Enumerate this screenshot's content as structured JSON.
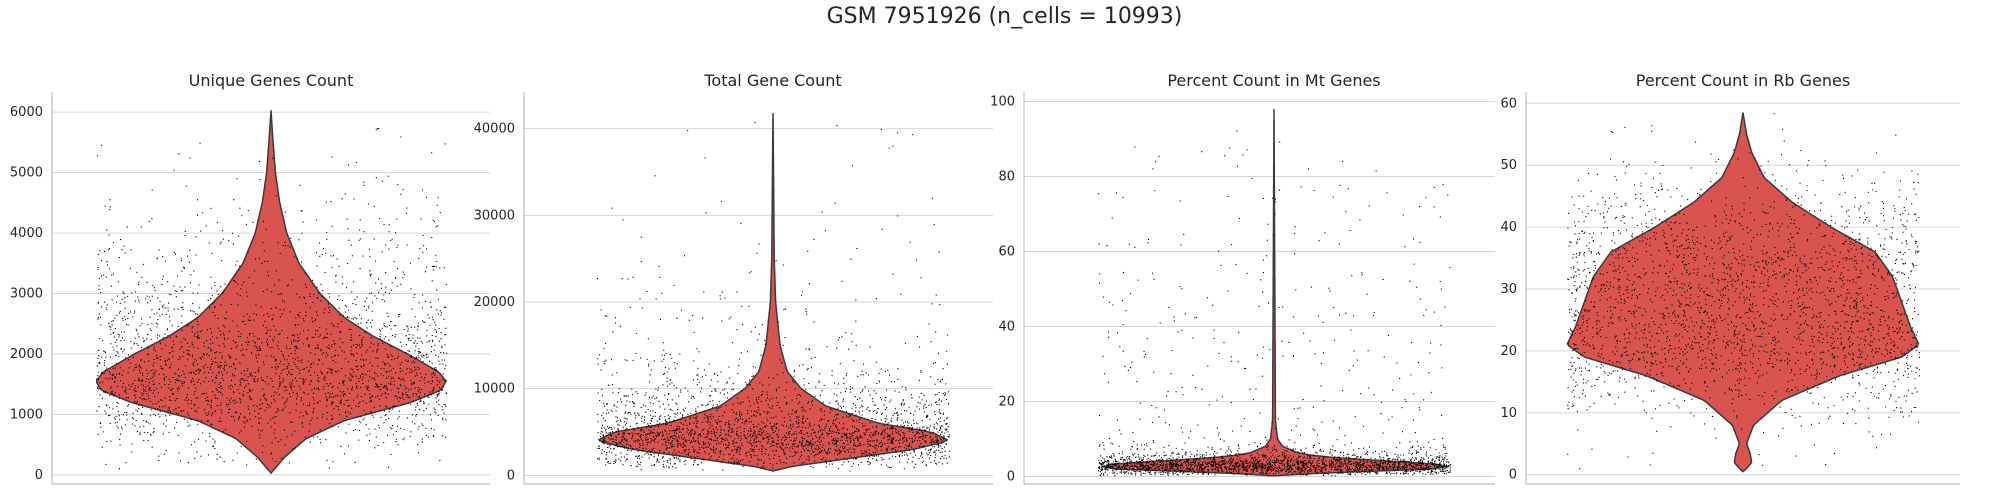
{
  "figure": {
    "title": "GSM 7951926 (n_cells = 10993)"
  },
  "style": {
    "violin_fill": "#d9534f",
    "violin_edge": "#3a3a3a",
    "point_color": "#000000",
    "grid_color": "#d6d6d6",
    "axis_color": "#bdbdbd",
    "text_color": "#262626"
  },
  "chart_data": [
    {
      "type": "violin",
      "title": "Unique Genes Count",
      "xlabel": "",
      "ylabel": "",
      "ylim": [
        -150,
        6300
      ],
      "yticks": [
        0,
        1000,
        2000,
        3000,
        4000,
        5000,
        6000
      ],
      "grid": "horizontal",
      "n_points": 10993,
      "violin": {
        "min": 30,
        "max": 6030,
        "median": 1600,
        "density": [
          [
            30,
            0.0
          ],
          [
            300,
            0.08
          ],
          [
            600,
            0.2
          ],
          [
            900,
            0.42
          ],
          [
            1200,
            0.8
          ],
          [
            1400,
            0.97
          ],
          [
            1550,
            1.0
          ],
          [
            1700,
            0.96
          ],
          [
            2000,
            0.78
          ],
          [
            2300,
            0.58
          ],
          [
            2600,
            0.42
          ],
          [
            3000,
            0.28
          ],
          [
            3500,
            0.16
          ],
          [
            4000,
            0.09
          ],
          [
            4500,
            0.05
          ],
          [
            5000,
            0.025
          ],
          [
            5500,
            0.012
          ],
          [
            6030,
            0.0
          ]
        ]
      }
    },
    {
      "type": "violin",
      "title": "Total Gene Count",
      "xlabel": "",
      "ylabel": "",
      "ylim": [
        -1000,
        44000
      ],
      "yticks": [
        0,
        10000,
        20000,
        30000,
        40000
      ],
      "grid": "horizontal",
      "n_points": 10993,
      "violin": {
        "min": 500,
        "max": 41800,
        "median": 4200,
        "density": [
          [
            500,
            0.0
          ],
          [
            1000,
            0.1
          ],
          [
            2000,
            0.45
          ],
          [
            3000,
            0.8
          ],
          [
            4000,
            1.0
          ],
          [
            5000,
            0.9
          ],
          [
            6000,
            0.6
          ],
          [
            8000,
            0.3
          ],
          [
            10000,
            0.16
          ],
          [
            12000,
            0.08
          ],
          [
            15000,
            0.04
          ],
          [
            20000,
            0.015
          ],
          [
            25000,
            0.007
          ],
          [
            30000,
            0.005
          ],
          [
            41800,
            0.0
          ]
        ]
      }
    },
    {
      "type": "violin",
      "title": "Percent Count in Mt Genes",
      "xlabel": "",
      "ylabel": "",
      "ylim": [
        -2,
        102
      ],
      "yticks": [
        0,
        20,
        40,
        60,
        80,
        100
      ],
      "grid": "horizontal",
      "n_points": 10993,
      "violin": {
        "min": 0.2,
        "max": 98,
        "median": 2.8,
        "density": [
          [
            0.2,
            0.0
          ],
          [
            1,
            0.3
          ],
          [
            2,
            0.9
          ],
          [
            3,
            1.0
          ],
          [
            4,
            0.7
          ],
          [
            5,
            0.35
          ],
          [
            6,
            0.15
          ],
          [
            8,
            0.05
          ],
          [
            10,
            0.02
          ],
          [
            15,
            0.008
          ],
          [
            98,
            0.0
          ]
        ]
      }
    },
    {
      "type": "violin",
      "title": "Percent Count in Rb Genes",
      "xlabel": "",
      "ylabel": "",
      "ylim": [
        -1.5,
        61.5
      ],
      "yticks": [
        0,
        10,
        20,
        30,
        40,
        50,
        60
      ],
      "grid": "horizontal",
      "n_points": 10993,
      "violin": {
        "min": 0.5,
        "max": 58.5,
        "median": 22,
        "density": [
          [
            0.5,
            0.0
          ],
          [
            1,
            0.02
          ],
          [
            2,
            0.05
          ],
          [
            3.5,
            0.04
          ],
          [
            5,
            0.02
          ],
          [
            8,
            0.06
          ],
          [
            12,
            0.22
          ],
          [
            16,
            0.55
          ],
          [
            19,
            0.9
          ],
          [
            21,
            1.0
          ],
          [
            24,
            0.95
          ],
          [
            28,
            0.9
          ],
          [
            32,
            0.85
          ],
          [
            36,
            0.75
          ],
          [
            40,
            0.5
          ],
          [
            44,
            0.28
          ],
          [
            48,
            0.12
          ],
          [
            52,
            0.05
          ],
          [
            55,
            0.02
          ],
          [
            58.5,
            0.0
          ]
        ]
      }
    }
  ]
}
